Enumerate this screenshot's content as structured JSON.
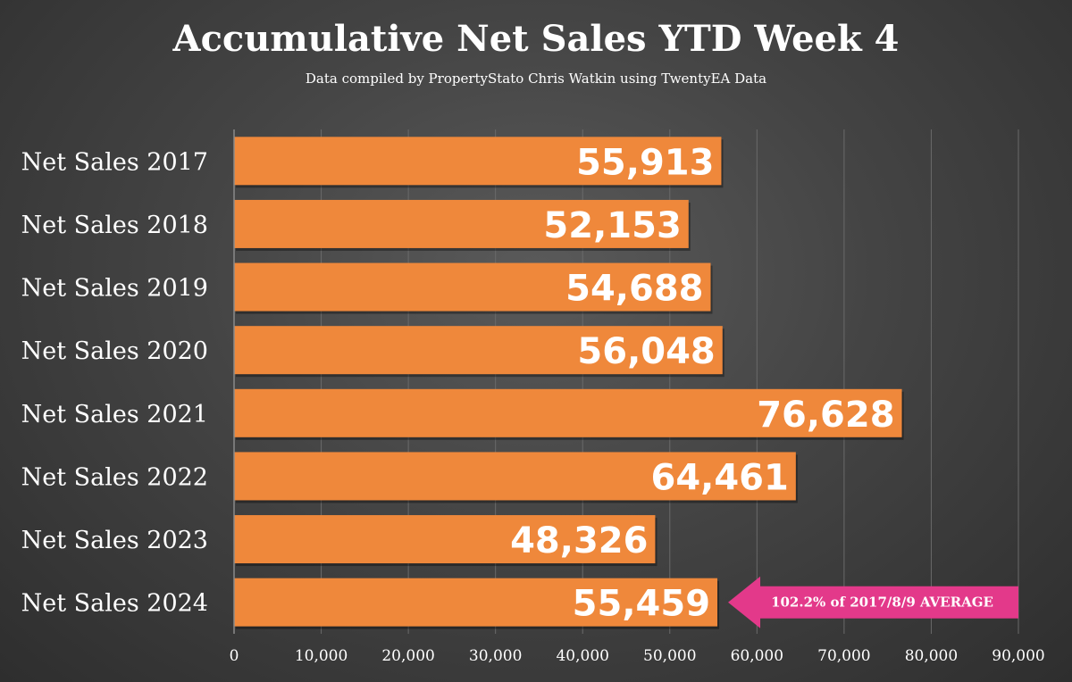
{
  "chart_data": {
    "type": "bar",
    "orientation": "horizontal",
    "title": "Accumulative Net Sales YTD Week 4",
    "subtitle": "Data compiled by PropertyStato Chris Watkin using TwentyEA Data",
    "categories": [
      "Net Sales 2017",
      "Net Sales 2018",
      "Net Sales 2019",
      "Net Sales 2020",
      "Net Sales 2021",
      "Net Sales 2022",
      "Net Sales 2023",
      "Net Sales 2024"
    ],
    "values": [
      55913,
      52153,
      54688,
      56048,
      76628,
      64461,
      48326,
      55459
    ],
    "value_labels": [
      "55,913",
      "52,153",
      "54,688",
      "56,048",
      "76,628",
      "64,461",
      "48,326",
      "55,459"
    ],
    "xlim": [
      0,
      90000
    ],
    "xticks": [
      0,
      10000,
      20000,
      30000,
      40000,
      50000,
      60000,
      70000,
      80000,
      90000
    ],
    "xtick_labels": [
      "0",
      "10,000",
      "20,000",
      "30,000",
      "40,000",
      "50,000",
      "60,000",
      "70,000",
      "80,000",
      "90,000"
    ],
    "grid": true,
    "annotation": {
      "text": "102.2% of 2017/8/9 AVERAGE",
      "target_category": "Net Sales 2024"
    },
    "colors": {
      "bar": "#ef883b",
      "annotation": "#e3398a",
      "text": "#ffffff",
      "grid": "#6a6a6a"
    }
  }
}
